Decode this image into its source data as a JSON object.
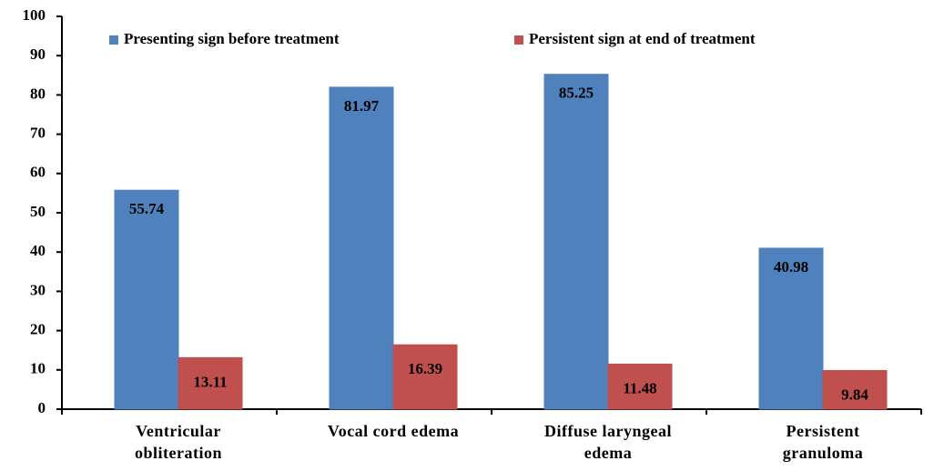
{
  "chart_data": {
    "type": "bar",
    "categories": [
      "Ventricular obliteration",
      "Vocal cord edema",
      "Diffuse laryngeal edema",
      "Persistent granuloma"
    ],
    "series": [
      {
        "name": "Presenting sign before treatment",
        "color": "#4f81bd",
        "values": [
          55.74,
          81.97,
          85.25,
          40.98
        ]
      },
      {
        "name": "Persistent sign at end of treatment",
        "color": "#c0504d",
        "values": [
          13.11,
          16.39,
          11.48,
          9.84
        ]
      }
    ],
    "ylim": [
      0,
      100
    ],
    "yticks": [
      0,
      10,
      20,
      30,
      40,
      50,
      60,
      70,
      80,
      90,
      100
    ],
    "grid": false,
    "legend": "top"
  }
}
